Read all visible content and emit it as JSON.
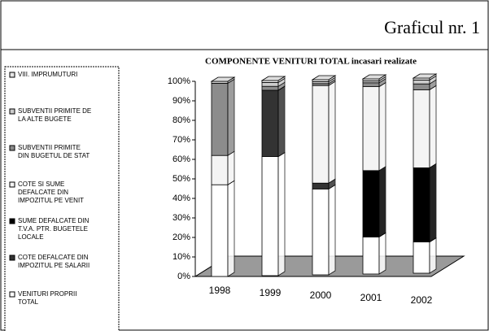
{
  "header": {
    "title": "Graficul nr. 1"
  },
  "chart_data": {
    "type": "stacked3d",
    "title": "COMPONENTE VENITURI TOTAL incasari realizate",
    "categories": [
      "1998",
      "1999",
      "2000",
      "2001",
      "2002"
    ],
    "series": [
      {
        "name": "VENITURI PROPRII TOTAL",
        "color": "#ffffff",
        "values": [
          47,
          61,
          44,
          19,
          16
        ]
      },
      {
        "name": "COTE DEFALCATE DIN IMPOZITUL PE SALARII",
        "color": "#333333",
        "values": [
          0,
          34,
          3,
          0,
          0
        ]
      },
      {
        "name": "SUME DEFALCATE DIN T.V.A. PTR. BUGETELE LOCALE",
        "color": "#000000",
        "values": [
          0,
          0,
          0,
          34,
          38
        ]
      },
      {
        "name": "COTE SI SUME DEFALCATE DIN IMPOZITUL PE VENIT",
        "color": "#f4f4f4",
        "values": [
          15,
          0,
          50,
          43,
          40
        ]
      },
      {
        "name": "SUBVENTII PRIMITE DIN BUGETUL DE STAT",
        "color": "#8c8c8c",
        "values": [
          37,
          2,
          1,
          2,
          3
        ]
      },
      {
        "name": "SUBVENTII PRIMITE DE LA ALTE BUGETE",
        "color": "#cccccc",
        "values": [
          1,
          2,
          1,
          1,
          2
        ]
      },
      {
        "name": "VIII. IMPRUMUTURI",
        "color": "#e6e6e6",
        "values": [
          0,
          1,
          1,
          1,
          1
        ]
      }
    ],
    "ylim": [
      0,
      100
    ],
    "yticks": [
      {
        "value": 0,
        "label": "0%"
      },
      {
        "value": 10,
        "label": "10%"
      },
      {
        "value": 20,
        "label": "20%"
      },
      {
        "value": 30,
        "label": "30%"
      },
      {
        "value": 40,
        "label": "40%"
      },
      {
        "value": 50,
        "label": "50%"
      },
      {
        "value": 60,
        "label": "60%"
      },
      {
        "value": 70,
        "label": "70%"
      },
      {
        "value": 80,
        "label": "80%"
      },
      {
        "value": 90,
        "label": "90%"
      },
      {
        "value": 100,
        "label": "100%"
      }
    ],
    "legend": "left"
  }
}
